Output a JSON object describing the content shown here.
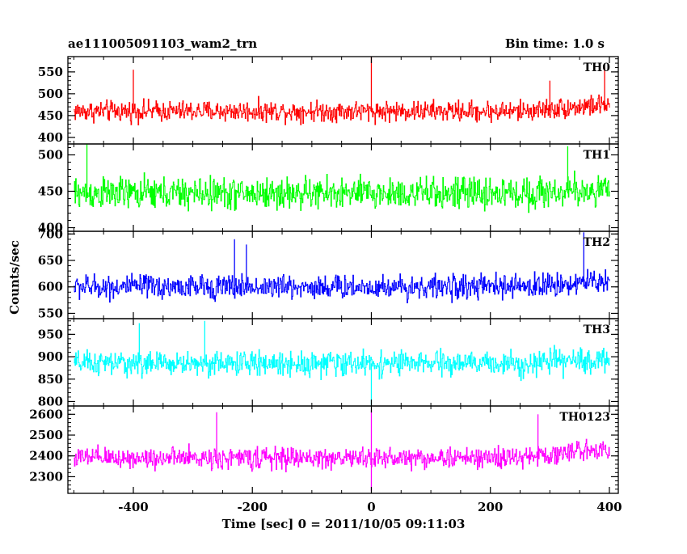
{
  "header": {
    "title_left": "ae111005091103_wam2_trn",
    "title_right": "Bin time: 1.0 s"
  },
  "axes": {
    "xlabel": "Time [sec] 0 = 2011/10/05 09:11:03",
    "ylabel": "Counts/sec"
  },
  "chart_data": {
    "type": "line",
    "x_range": [
      -510,
      415
    ],
    "x_ticks": [
      -400,
      -200,
      0,
      200,
      400
    ],
    "data_x_range": [
      -500,
      400
    ],
    "bin_time_s": 1.0,
    "grid": false,
    "panels": [
      {
        "name": "TH0",
        "color": "#ff0000",
        "ylim": [
          385,
          585
        ],
        "y_ticks": [
          400,
          450,
          500,
          550
        ],
        "mean": 460,
        "spread": 28,
        "end_rise": 15,
        "spikes": [
          {
            "x": 0,
            "y": 585
          },
          {
            "x": -400,
            "y": 555
          },
          {
            "x": 392,
            "y": 560
          },
          {
            "x": 300,
            "y": 530
          }
        ]
      },
      {
        "name": "TH1",
        "color": "#00ff00",
        "ylim": [
          395,
          515
        ],
        "y_ticks": [
          400,
          450,
          500
        ],
        "mean": 447,
        "spread": 26,
        "end_rise": 5,
        "spikes": [
          {
            "x": -478,
            "y": 515
          },
          {
            "x": 330,
            "y": 512
          }
        ]
      },
      {
        "name": "TH2",
        "color": "#0000ff",
        "ylim": [
          540,
          705
        ],
        "y_ticks": [
          550,
          600,
          650,
          700
        ],
        "mean": 600,
        "spread": 27,
        "end_rise": 12,
        "spikes": [
          {
            "x": 357,
            "y": 703
          },
          {
            "x": -230,
            "y": 690
          },
          {
            "x": -210,
            "y": 680
          }
        ]
      },
      {
        "name": "TH3",
        "color": "#00ffff",
        "ylim": [
          790,
          985
        ],
        "y_ticks": [
          800,
          850,
          900,
          950
        ],
        "mean": 885,
        "spread": 32,
        "end_rise": 8,
        "spikes": [
          {
            "x": -280,
            "y": 980
          },
          {
            "x": -390,
            "y": 975
          },
          {
            "x": 0,
            "y": 790
          }
        ]
      },
      {
        "name": "TH0123",
        "color": "#ff00ff",
        "ylim": [
          2220,
          2640
        ],
        "y_ticks": [
          2300,
          2400,
          2500,
          2600
        ],
        "mean": 2390,
        "spread": 60,
        "end_rise": 50,
        "spikes": [
          {
            "x": -260,
            "y": 2610
          },
          {
            "x": 0,
            "y": 2620
          },
          {
            "x": 0,
            "y": 2230
          },
          {
            "x": 280,
            "y": 2600
          }
        ]
      }
    ]
  }
}
